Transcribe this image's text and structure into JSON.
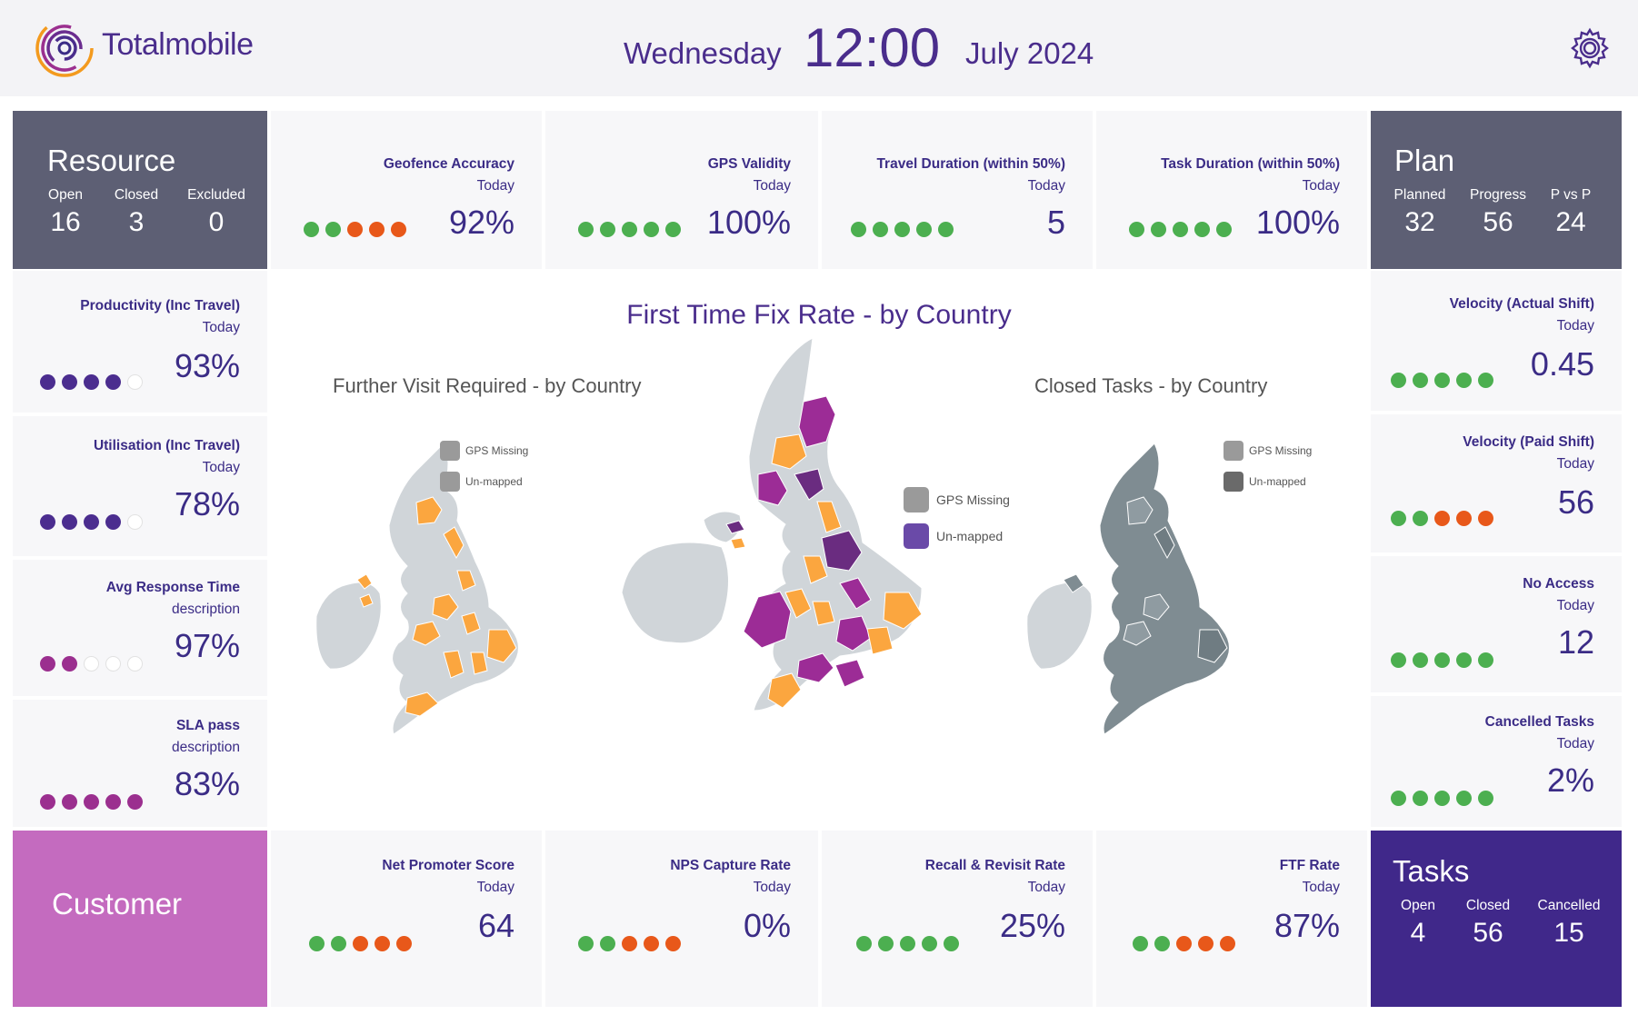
{
  "header": {
    "brand": "Totalmobile",
    "day": "Wednesday",
    "time": "12:00",
    "date": "July 2024"
  },
  "colors": {
    "good": "#4caf50",
    "bad": "#e8581a",
    "purple_dot": "#4b2d8f",
    "magenta_dot": "#9b2f8f",
    "empty_dot": "#ffffff",
    "resource_bg": "#5d5f74",
    "plan_bg": "#5d5f74",
    "customer_bg": "#c46bbf",
    "tasks_bg": "#40288a",
    "orange_region": "#fba63f",
    "purple_region": "#9c2c96",
    "dark_purple_region": "#6a2c80",
    "grey_region": "#d0d5d9",
    "slate_region": "#7f8c92"
  },
  "resource": {
    "title": "Resource",
    "cols": [
      {
        "label": "Open",
        "value": "16"
      },
      {
        "label": "Closed",
        "value": "3"
      },
      {
        "label": "Excluded",
        "value": "0"
      }
    ]
  },
  "plan": {
    "title": "Plan",
    "cols": [
      {
        "label": "Planned",
        "value": "32"
      },
      {
        "label": "Progress",
        "value": "56"
      },
      {
        "label": "P vs P",
        "value": "24"
      }
    ]
  },
  "customer": {
    "title": "Customer"
  },
  "tasks": {
    "title": "Tasks",
    "cols": [
      {
        "label": "Open",
        "value": "4"
      },
      {
        "label": "Closed",
        "value": "56"
      },
      {
        "label": "Cancelled",
        "value": "15"
      }
    ]
  },
  "top_tiles": [
    {
      "title": "Geofence Accuracy",
      "sub": "Today",
      "value": "92%",
      "dots": [
        "good",
        "good",
        "bad",
        "bad",
        "bad"
      ]
    },
    {
      "title": "GPS Validity",
      "sub": "Today",
      "value": "100%",
      "dots": [
        "good",
        "good",
        "good",
        "good",
        "good"
      ]
    },
    {
      "title": "Travel Duration (within 50%)",
      "sub": "Today",
      "value": "5",
      "dots": [
        "good",
        "good",
        "good",
        "good",
        "good"
      ]
    },
    {
      "title": "Task Duration (within 50%)",
      "sub": "Today",
      "value": "100%",
      "dots": [
        "good",
        "good",
        "good",
        "good",
        "good"
      ]
    }
  ],
  "left_tiles": [
    {
      "title": "Productivity (Inc Travel)",
      "sub": "Today",
      "value": "93%",
      "dots": [
        "purple_dot",
        "purple_dot",
        "purple_dot",
        "purple_dot",
        "empty_dot"
      ]
    },
    {
      "title": "Utilisation (Inc Travel)",
      "sub": "Today",
      "value": "78%",
      "dots": [
        "purple_dot",
        "purple_dot",
        "purple_dot",
        "purple_dot",
        "empty_dot"
      ]
    },
    {
      "title": "Avg Response Time",
      "sub": "description",
      "value": "97%",
      "dots": [
        "magenta_dot",
        "magenta_dot",
        "empty_dot",
        "empty_dot",
        "empty_dot"
      ]
    },
    {
      "title": "SLA pass",
      "sub": "description",
      "value": "83%",
      "dots": [
        "magenta_dot",
        "magenta_dot",
        "magenta_dot",
        "magenta_dot",
        "magenta_dot"
      ]
    }
  ],
  "right_tiles": [
    {
      "title": "Velocity (Actual Shift)",
      "sub": "Today",
      "value": "0.45",
      "dots": [
        "good",
        "good",
        "good",
        "good",
        "good"
      ]
    },
    {
      "title": "Velocity (Paid Shift)",
      "sub": "Today",
      "value": "56",
      "dots": [
        "good",
        "good",
        "bad",
        "bad",
        "bad"
      ]
    },
    {
      "title": "No Access",
      "sub": "Today",
      "value": "12",
      "dots": [
        "good",
        "good",
        "good",
        "good",
        "good"
      ]
    },
    {
      "title": "Cancelled Tasks",
      "sub": "Today",
      "value": "2%",
      "dots": [
        "good",
        "good",
        "good",
        "good",
        "good"
      ]
    }
  ],
  "bottom_tiles": [
    {
      "title": "Net Promoter Score",
      "sub": "Today",
      "value": "64",
      "dots": [
        "good",
        "good",
        "bad",
        "bad",
        "bad"
      ]
    },
    {
      "title": "NPS Capture Rate",
      "sub": "Today",
      "value": "0%",
      "dots": [
        "good",
        "good",
        "bad",
        "bad",
        "bad"
      ]
    },
    {
      "title": "Recall & Revisit Rate",
      "sub": "Today",
      "value": "25%",
      "dots": [
        "good",
        "good",
        "good",
        "good",
        "good"
      ]
    },
    {
      "title": "FTF Rate",
      "sub": "Today",
      "value": "87%",
      "dots": [
        "good",
        "good",
        "bad",
        "bad",
        "bad"
      ]
    }
  ],
  "center": {
    "title": "First Time Fix Rate - by Country",
    "left_title": "Further Visit Required - by Country",
    "right_title": "Closed Tasks - by Country",
    "legend_gps": "GPS Missing",
    "legend_unmapped": "Un-mapped"
  }
}
